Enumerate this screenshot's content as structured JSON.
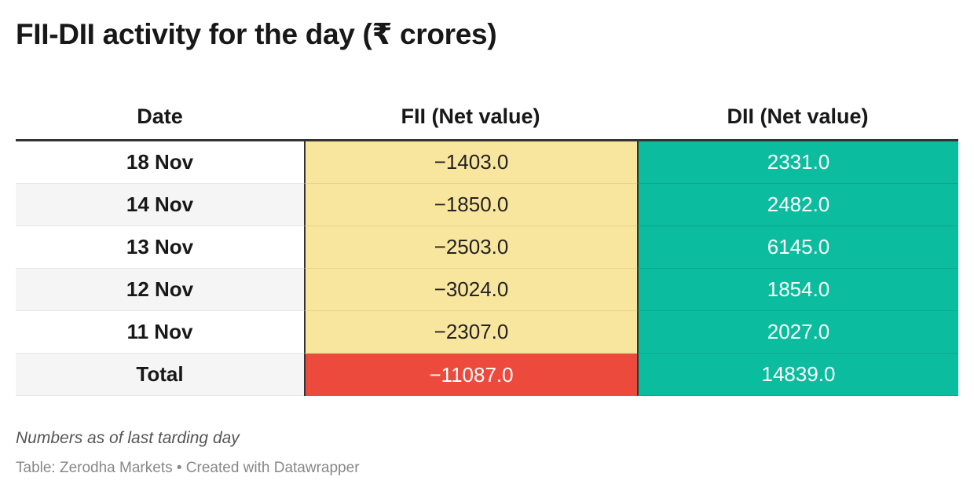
{
  "title": "FII-DII activity for the day (₹ crores)",
  "chart_data": {
    "type": "table",
    "title": "FII-DII activity for the day (₹ crores)",
    "columns": [
      "Date",
      "FII (Net value)",
      "DII (Net value)"
    ],
    "rows": [
      {
        "date": "18 Nov",
        "fii": "−1403.0",
        "dii": "2331.0"
      },
      {
        "date": "14 Nov",
        "fii": "−1850.0",
        "dii": "2482.0"
      },
      {
        "date": "13 Nov",
        "fii": "−2503.0",
        "dii": "6145.0"
      },
      {
        "date": "12 Nov",
        "fii": "−3024.0",
        "dii": "1854.0"
      },
      {
        "date": "11 Nov",
        "fii": "−2307.0",
        "dii": "2027.0"
      },
      {
        "date": "Total",
        "fii": "−11087.0",
        "dii": "14839.0"
      }
    ],
    "colors": {
      "fii_negative": "#f8e59e",
      "fii_total": "#ec4a3c",
      "dii_positive": "#0bbd9e"
    }
  },
  "notes": "Numbers as of last tarding day",
  "footer": "Table: Zerodha Markets • Created with Datawrapper"
}
